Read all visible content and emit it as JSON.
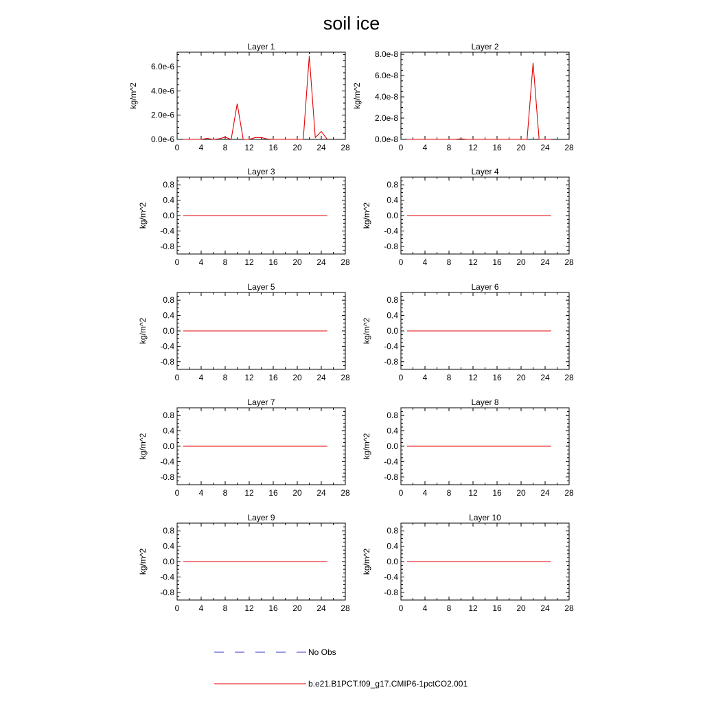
{
  "figure": {
    "title": "soil ice",
    "legend": [
      {
        "label": "No Obs",
        "color": "#3333cc",
        "style": "dashed"
      },
      {
        "label": "b.e21.B1PCT.f09_g17.CMIP6-1pctCO2.001",
        "color": "#e00000",
        "style": "solid"
      }
    ]
  },
  "chart_data": [
    {
      "type": "line",
      "title": "Layer 1",
      "ylabel": "kg/m^2",
      "xlim": [
        0,
        28
      ],
      "xticks": [
        0,
        4,
        8,
        12,
        16,
        20,
        24,
        28
      ],
      "ylim": [
        0,
        7.2e-06
      ],
      "yticks": [
        0,
        2e-06,
        4e-06,
        6e-06
      ],
      "ytick_labels": [
        "0.0e-6",
        "2.0e-6",
        "4.0e-6",
        "6.0e-6"
      ],
      "series": [
        {
          "color": "#e00000",
          "x": [
            1,
            2,
            3,
            4,
            5,
            6,
            7,
            8,
            9,
            10,
            11,
            12,
            13,
            14,
            15,
            16,
            17,
            18,
            19,
            20,
            21,
            22,
            23,
            24,
            25
          ],
          "y": [
            0,
            0,
            0,
            0,
            8e-08,
            0,
            5e-08,
            1.8e-07,
            0,
            2.95e-06,
            0,
            0,
            1.5e-07,
            1.5e-07,
            3e-08,
            0,
            0,
            0,
            0,
            0,
            0,
            6.9e-06,
            1.5e-07,
            6.5e-07,
            0
          ]
        }
      ]
    },
    {
      "type": "line",
      "title": "Layer 2",
      "ylabel": "kg/m^2",
      "xlim": [
        0,
        28
      ],
      "xticks": [
        0,
        4,
        8,
        12,
        16,
        20,
        24,
        28
      ],
      "ylim": [
        0,
        8.2e-08
      ],
      "yticks": [
        0,
        2e-08,
        4e-08,
        6e-08,
        8e-08
      ],
      "ytick_labels": [
        "0.0e-8",
        "2.0e-8",
        "4.0e-8",
        "6.0e-8",
        "8.0e-8"
      ],
      "series": [
        {
          "color": "#e00000",
          "x": [
            1,
            2,
            3,
            4,
            5,
            6,
            7,
            8,
            9,
            10,
            11,
            12,
            13,
            14,
            15,
            16,
            17,
            18,
            19,
            20,
            21,
            22,
            23,
            24,
            25
          ],
          "y": [
            0,
            0,
            0,
            0,
            0,
            0,
            0,
            0,
            0,
            5e-10,
            0,
            0,
            0,
            0,
            0,
            0,
            0,
            0,
            0,
            0,
            0,
            7.2e-08,
            0,
            0,
            0
          ]
        }
      ]
    },
    {
      "type": "line",
      "title": "Layer 3",
      "ylabel": "kg/m^2",
      "xlim": [
        0,
        28
      ],
      "xticks": [
        0,
        4,
        8,
        12,
        16,
        20,
        24,
        28
      ],
      "ylim": [
        -1,
        1
      ],
      "yticks": [
        -0.8,
        -0.4,
        0,
        0.4,
        0.8
      ],
      "ytick_labels": [
        "-0.8",
        "-0.4",
        "0.0",
        "0.4",
        "0.8"
      ],
      "series": [
        {
          "color": "#e00000",
          "x": [
            1,
            25
          ],
          "y": [
            0,
            0
          ]
        }
      ]
    },
    {
      "type": "line",
      "title": "Layer 4",
      "ylabel": "kg/m^2",
      "xlim": [
        0,
        28
      ],
      "xticks": [
        0,
        4,
        8,
        12,
        16,
        20,
        24,
        28
      ],
      "ylim": [
        -1,
        1
      ],
      "yticks": [
        -0.8,
        -0.4,
        0,
        0.4,
        0.8
      ],
      "ytick_labels": [
        "-0.8",
        "-0.4",
        "0.0",
        "0.4",
        "0.8"
      ],
      "series": [
        {
          "color": "#e00000",
          "x": [
            1,
            25
          ],
          "y": [
            0,
            0
          ]
        }
      ]
    },
    {
      "type": "line",
      "title": "Layer 5",
      "ylabel": "kg/m^2",
      "xlim": [
        0,
        28
      ],
      "xticks": [
        0,
        4,
        8,
        12,
        16,
        20,
        24,
        28
      ],
      "ylim": [
        -1,
        1
      ],
      "yticks": [
        -0.8,
        -0.4,
        0,
        0.4,
        0.8
      ],
      "ytick_labels": [
        "-0.8",
        "-0.4",
        "0.0",
        "0.4",
        "0.8"
      ],
      "series": [
        {
          "color": "#e00000",
          "x": [
            1,
            25
          ],
          "y": [
            0,
            0
          ]
        }
      ]
    },
    {
      "type": "line",
      "title": "Layer 6",
      "ylabel": "kg/m^2",
      "xlim": [
        0,
        28
      ],
      "xticks": [
        0,
        4,
        8,
        12,
        16,
        20,
        24,
        28
      ],
      "ylim": [
        -1,
        1
      ],
      "yticks": [
        -0.8,
        -0.4,
        0,
        0.4,
        0.8
      ],
      "ytick_labels": [
        "-0.8",
        "-0.4",
        "0.0",
        "0.4",
        "0.8"
      ],
      "series": [
        {
          "color": "#e00000",
          "x": [
            1,
            25
          ],
          "y": [
            0,
            0
          ]
        }
      ]
    },
    {
      "type": "line",
      "title": "Layer 7",
      "ylabel": "kg/m^2",
      "xlim": [
        0,
        28
      ],
      "xticks": [
        0,
        4,
        8,
        12,
        16,
        20,
        24,
        28
      ],
      "ylim": [
        -1,
        1
      ],
      "yticks": [
        -0.8,
        -0.4,
        0,
        0.4,
        0.8
      ],
      "ytick_labels": [
        "-0.8",
        "-0.4",
        "0.0",
        "0.4",
        "0.8"
      ],
      "series": [
        {
          "color": "#e00000",
          "x": [
            1,
            25
          ],
          "y": [
            0,
            0
          ]
        }
      ]
    },
    {
      "type": "line",
      "title": "Layer 8",
      "ylabel": "kg/m^2",
      "xlim": [
        0,
        28
      ],
      "xticks": [
        0,
        4,
        8,
        12,
        16,
        20,
        24,
        28
      ],
      "ylim": [
        -1,
        1
      ],
      "yticks": [
        -0.8,
        -0.4,
        0,
        0.4,
        0.8
      ],
      "ytick_labels": [
        "-0.8",
        "-0.4",
        "0.0",
        "0.4",
        "0.8"
      ],
      "series": [
        {
          "color": "#e00000",
          "x": [
            1,
            25
          ],
          "y": [
            0,
            0
          ]
        }
      ]
    },
    {
      "type": "line",
      "title": "Layer 9",
      "ylabel": "kg/m^2",
      "xlim": [
        0,
        28
      ],
      "xticks": [
        0,
        4,
        8,
        12,
        16,
        20,
        24,
        28
      ],
      "ylim": [
        -1,
        1
      ],
      "yticks": [
        -0.8,
        -0.4,
        0,
        0.4,
        0.8
      ],
      "ytick_labels": [
        "-0.8",
        "-0.4",
        "0.0",
        "0.4",
        "0.8"
      ],
      "series": [
        {
          "color": "#e00000",
          "x": [
            1,
            25
          ],
          "y": [
            0,
            0
          ]
        }
      ]
    },
    {
      "type": "line",
      "title": "Layer 10",
      "ylabel": "kg/m^2",
      "xlim": [
        0,
        28
      ],
      "xticks": [
        0,
        4,
        8,
        12,
        16,
        20,
        24,
        28
      ],
      "ylim": [
        -1,
        1
      ],
      "yticks": [
        -0.8,
        -0.4,
        0,
        0.4,
        0.8
      ],
      "ytick_labels": [
        "-0.8",
        "-0.4",
        "0.0",
        "0.4",
        "0.8"
      ],
      "series": [
        {
          "color": "#e00000",
          "x": [
            1,
            25
          ],
          "y": [
            0,
            0
          ]
        }
      ]
    }
  ]
}
